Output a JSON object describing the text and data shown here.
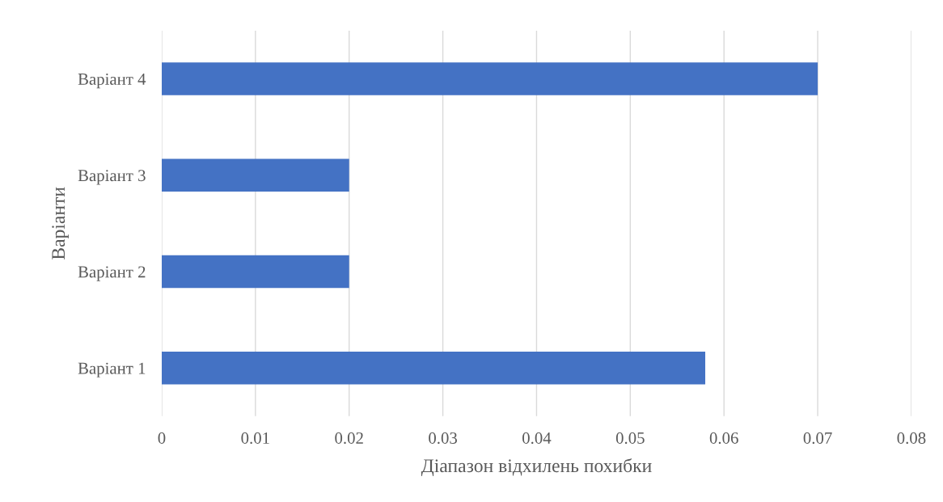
{
  "chart_data": {
    "type": "bar",
    "orientation": "horizontal",
    "xlabel": "Діапазон відхилень похибки",
    "ylabel": "Варіанти",
    "categories": [
      "Варіант 4",
      "Варіант 3",
      "Варіант 2",
      "Варіант 1"
    ],
    "values": [
      0.07,
      0.02,
      0.02,
      0.058
    ],
    "color": "#4472c4",
    "xlim": [
      0,
      0.08
    ],
    "xticks": [
      0,
      0.01,
      0.02,
      0.03,
      0.04,
      0.05,
      0.06,
      0.07,
      0.08
    ],
    "grid": "x"
  }
}
